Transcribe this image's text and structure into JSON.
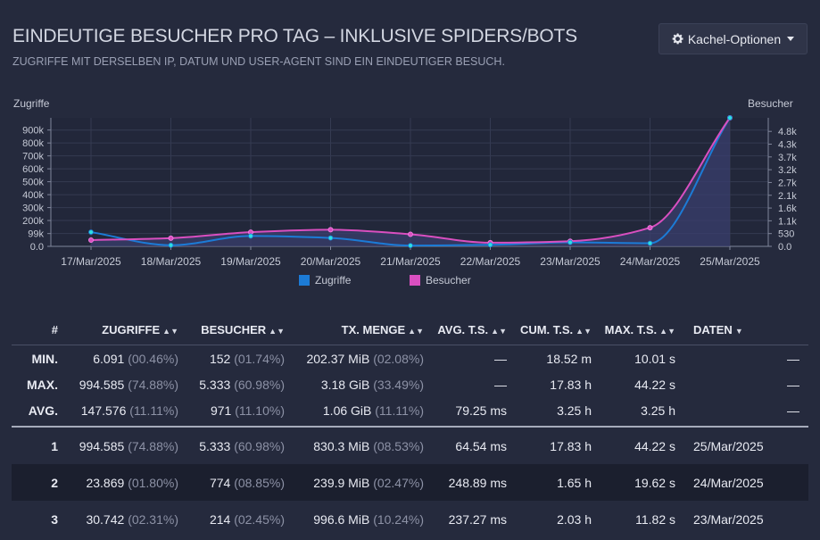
{
  "header": {
    "title": "EINDEUTIGE BESUCHER PRO TAG – INKLUSIVE SPIDERS/BOTS",
    "subtitle": "ZUGRIFFE MIT DERSELBEN IP, DATUM UND USER-AGENT SIND EIN EINDEUTIGER BESUCH.",
    "options_button": "Kachel-Optionen",
    "options_icon": "gear-icon"
  },
  "chart_data": {
    "type": "line",
    "categories": [
      "17/Mar/2025",
      "18/Mar/2025",
      "19/Mar/2025",
      "20/Mar/2025",
      "21/Mar/2025",
      "22/Mar/2025",
      "23/Mar/2025",
      "24/Mar/2025",
      "25/Mar/2025"
    ],
    "series": [
      {
        "name": "Zugriffe",
        "axis": "left",
        "color": "#1c7bd6",
        "values": [
          110000,
          8500,
          80000,
          65000,
          6091,
          12000,
          30742,
          23869,
          994585
        ]
      },
      {
        "name": "Besucher",
        "axis": "right",
        "color": "#d94fc0",
        "values": [
          260,
          340,
          590,
          690,
          500,
          152,
          214,
          774,
          5333
        ]
      }
    ],
    "left_axis": {
      "label": "Zugriffe",
      "ticks": [
        "0.0",
        "99k",
        "200k",
        "300k",
        "400k",
        "500k",
        "600k",
        "700k",
        "800k",
        "900k"
      ],
      "tick_values": [
        0,
        99000,
        200000,
        300000,
        400000,
        500000,
        600000,
        700000,
        800000,
        900000
      ],
      "ylim": [
        0,
        994585
      ]
    },
    "right_axis": {
      "label": "Besucher",
      "ticks": [
        "0.0",
        "530",
        "1.1k",
        "1.6k",
        "2.1k",
        "2.7k",
        "3.2k",
        "3.7k",
        "4.3k",
        "4.8k"
      ],
      "tick_values": [
        0,
        530,
        1060,
        1590,
        2120,
        2650,
        3180,
        3710,
        4240,
        4770
      ],
      "ylim": [
        0,
        5333
      ]
    },
    "legend_position": "bottom",
    "grid": true,
    "point_color": "#2ee0e0",
    "area_fill": "#3a3f6e"
  },
  "table": {
    "headers": {
      "num": "#",
      "hits": "ZUGRIFFE",
      "visitors": "BESUCHER",
      "tx": "TX. MENGE",
      "avg_ts": "AVG. T.S.",
      "cum_ts": "CUM. T.S.",
      "max_ts": "MAX. T.S.",
      "data": "DATEN"
    },
    "summary": [
      {
        "label": "MIN.",
        "hits": "6.091",
        "hits_pct": "(00.46%)",
        "visitors": "152",
        "visitors_pct": "(01.74%)",
        "tx": "202.37 MiB",
        "tx_pct": "(02.08%)",
        "avg_ts": "—",
        "cum_ts": "18.52 m",
        "max_ts": "10.01 s",
        "data": "—"
      },
      {
        "label": "MAX.",
        "hits": "994.585",
        "hits_pct": "(74.88%)",
        "visitors": "5.333",
        "visitors_pct": "(60.98%)",
        "tx": "3.18 GiB",
        "tx_pct": "(33.49%)",
        "avg_ts": "—",
        "cum_ts": "17.83 h",
        "max_ts": "44.22 s",
        "data": "—"
      },
      {
        "label": "AVG.",
        "hits": "147.576",
        "hits_pct": "(11.11%)",
        "visitors": "971",
        "visitors_pct": "(11.10%)",
        "tx": "1.06 GiB",
        "tx_pct": "(11.11%)",
        "avg_ts": "79.25 ms",
        "cum_ts": "3.25 h",
        "max_ts": "3.25 h",
        "data": "—"
      }
    ],
    "rows": [
      {
        "num": "1",
        "hits": "994.585",
        "hits_pct": "(74.88%)",
        "visitors": "5.333",
        "visitors_pct": "(60.98%)",
        "tx": "830.3 MiB",
        "tx_pct": "(08.53%)",
        "avg_ts": "64.54 ms",
        "cum_ts": "17.83 h",
        "max_ts": "44.22 s",
        "data": "25/Mar/2025"
      },
      {
        "num": "2",
        "hits": "23.869",
        "hits_pct": "(01.80%)",
        "visitors": "774",
        "visitors_pct": "(08.85%)",
        "tx": "239.9 MiB",
        "tx_pct": "(02.47%)",
        "avg_ts": "248.89 ms",
        "cum_ts": "1.65 h",
        "max_ts": "19.62 s",
        "data": "24/Mar/2025"
      },
      {
        "num": "3",
        "hits": "30.742",
        "hits_pct": "(02.31%)",
        "visitors": "214",
        "visitors_pct": "(02.45%)",
        "tx": "996.6 MiB",
        "tx_pct": "(10.24%)",
        "avg_ts": "237.27 ms",
        "cum_ts": "2.03 h",
        "max_ts": "11.82 s",
        "data": "23/Mar/2025"
      }
    ]
  }
}
